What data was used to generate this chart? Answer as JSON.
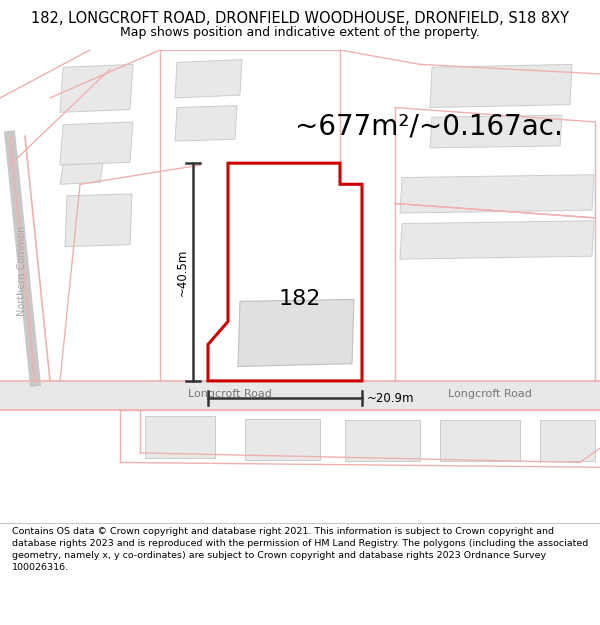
{
  "title_line1": "182, LONGCROFT ROAD, DRONFIELD WOODHOUSE, DRONFIELD, S18 8XY",
  "title_line2": "Map shows position and indicative extent of the property.",
  "area_text": "~677m²/~0.167ac.",
  "label_182": "182",
  "dim_width": "~20.9m",
  "dim_height": "~40.5m",
  "road_label_left": "Longcroft Road",
  "road_label_right": "Longcroft Road",
  "street_label": "Northern Common",
  "footer": "Contains OS data © Crown copyright and database right 2021. This information is subject to Crown copyright and database rights 2023 and is reproduced with the permission of HM Land Registry. The polygons (including the associated geometry, namely x, y co-ordinates) are subject to Crown copyright and database rights 2023 Ordnance Survey 100026316.",
  "map_bg": "#ffffff",
  "building_fill": "#e8e8e8",
  "building_edge": "#cccccc",
  "plot_fill": "#ffffff",
  "plot_edge": "#cc0000",
  "road_fill": "#e0e0e0",
  "pink": "#f0b0b0",
  "dim_line_color": "#333333",
  "title_fontsize": 10.5,
  "subtitle_fontsize": 9,
  "area_fontsize": 20,
  "label_fontsize": 16,
  "footer_fontsize": 6.8
}
